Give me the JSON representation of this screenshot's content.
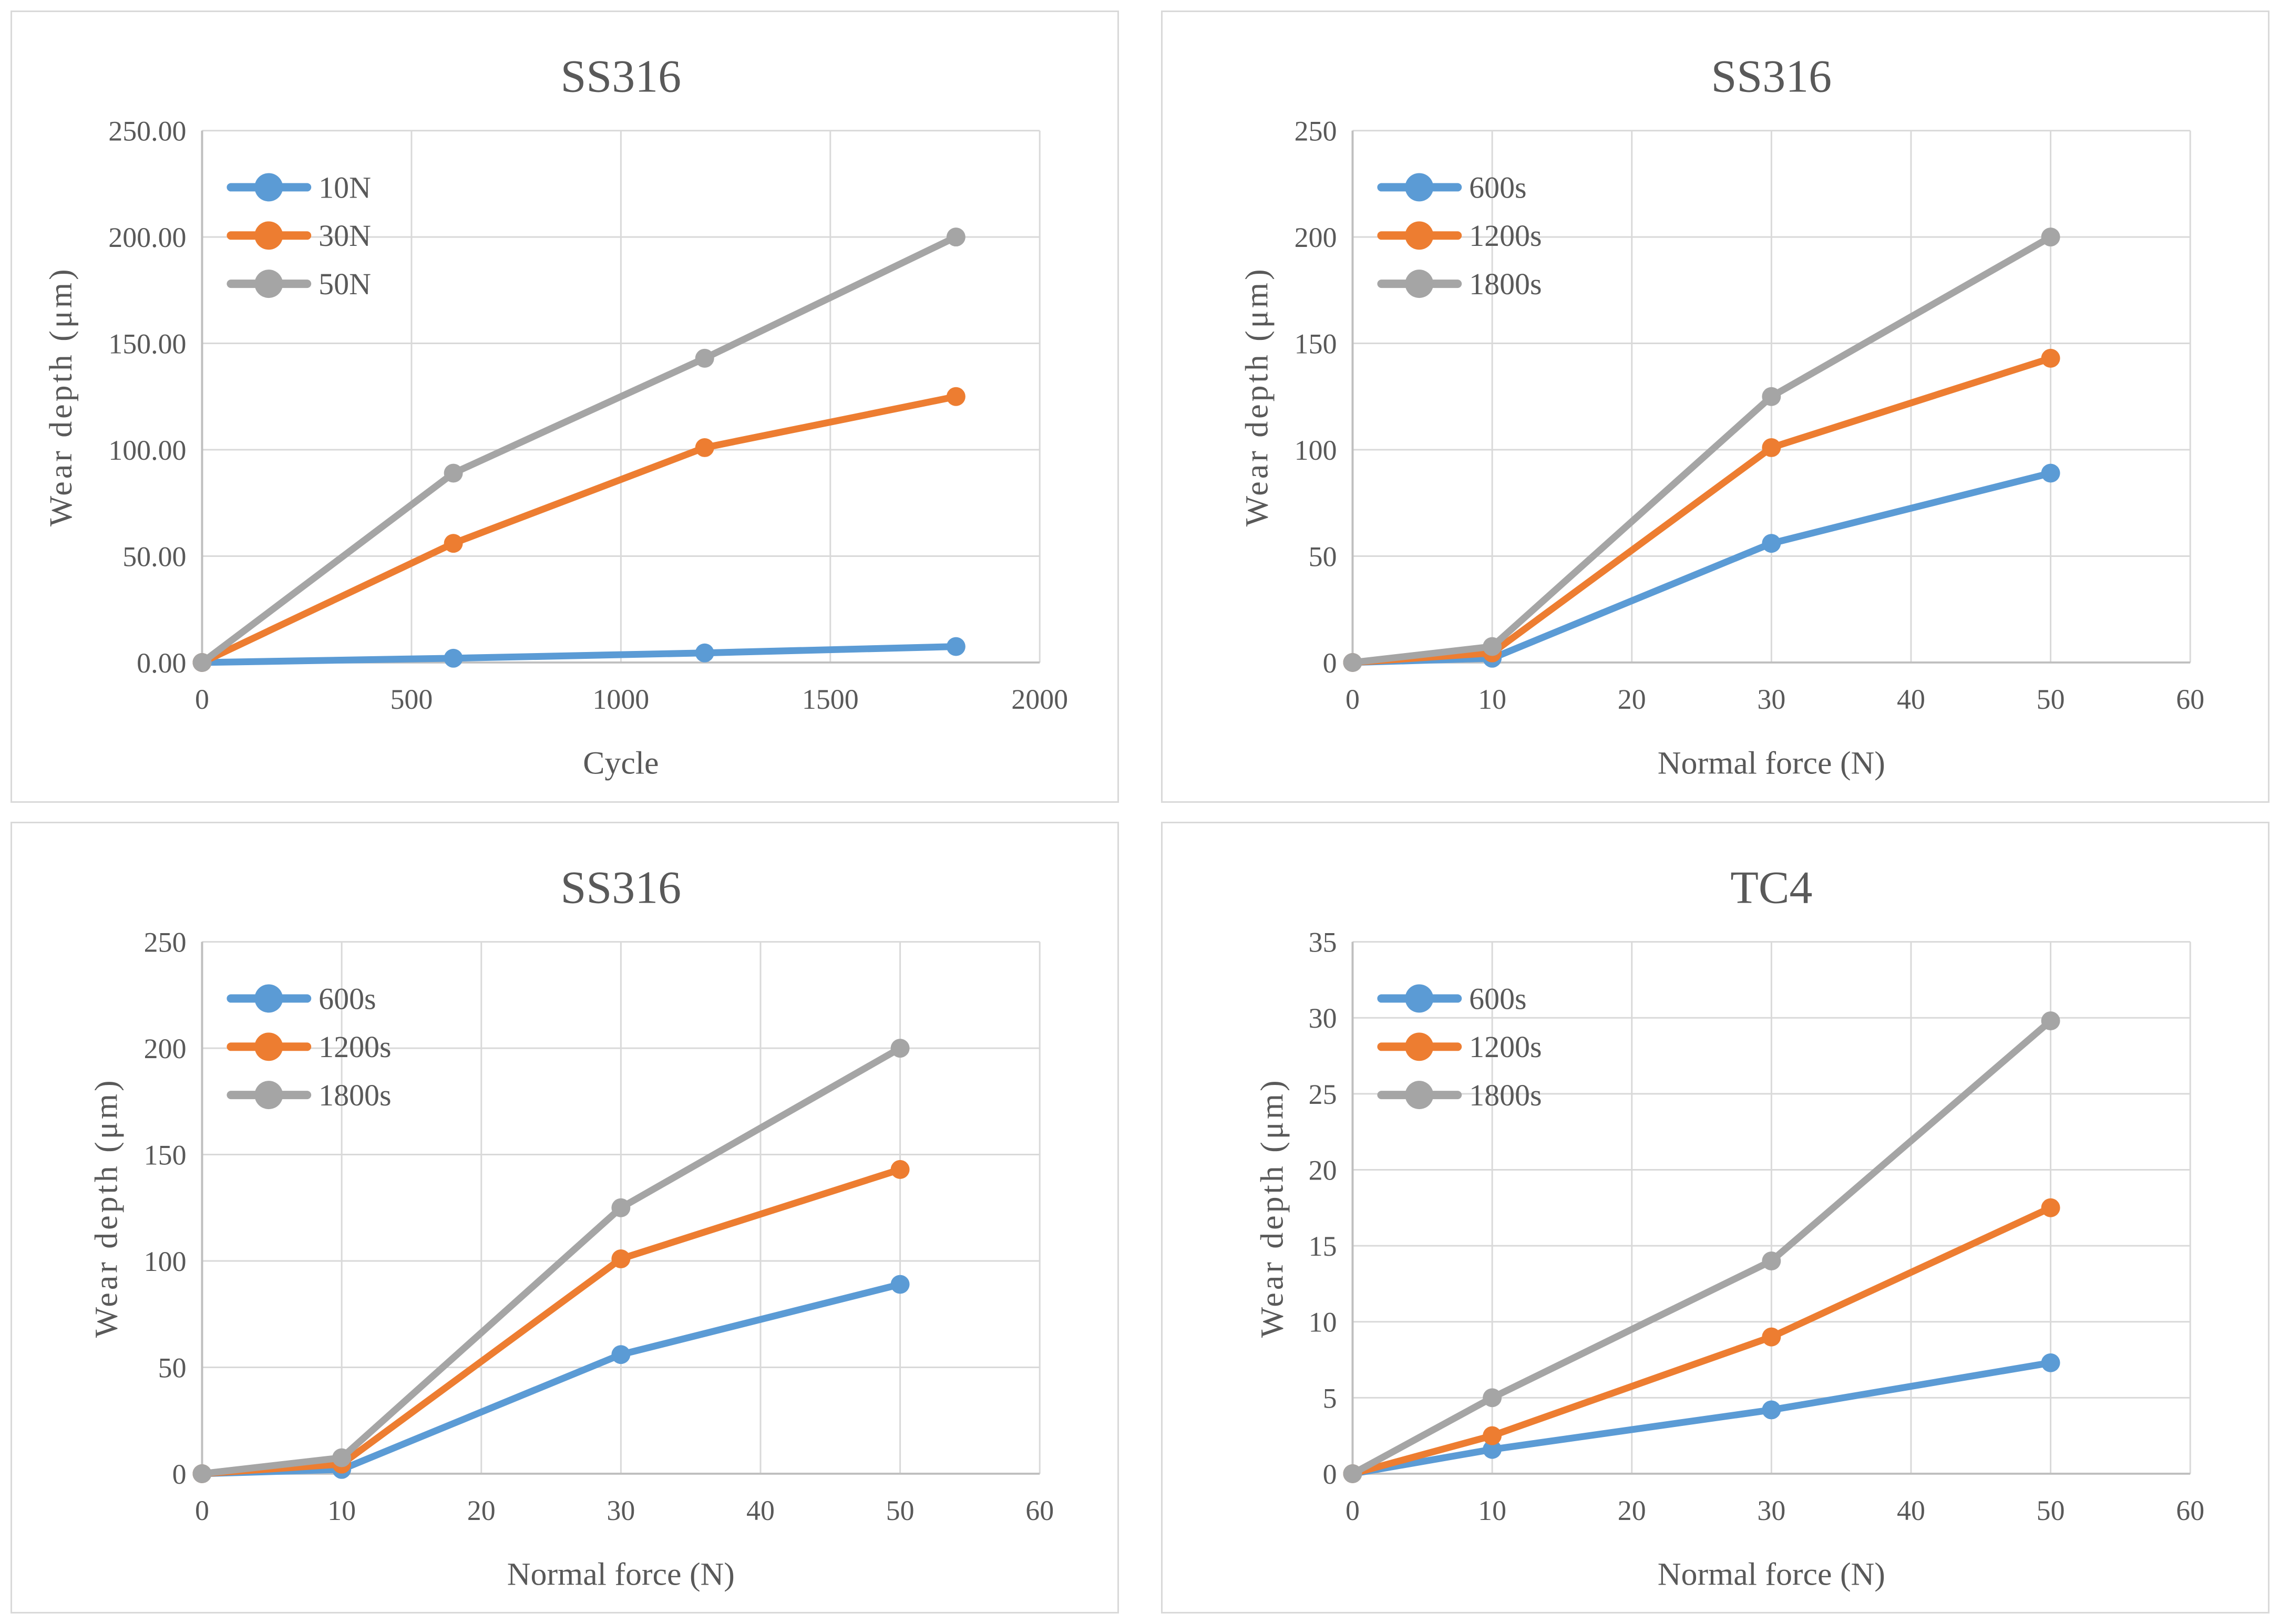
{
  "colors": {
    "series_blue": "#5B9BD5",
    "series_orange": "#ED7D31",
    "series_gray": "#A5A5A5",
    "gridline": "#D9D9D9",
    "axis_line": "#BFBFBF",
    "text": "#595959",
    "panel_border": "#D9D9D9",
    "background": "#FFFFFF"
  },
  "chart_data": [
    {
      "type": "line",
      "title": "SS316",
      "xlabel": "Cycle",
      "ylabel": "Wear depth (μm)",
      "grid": true,
      "legend_position": "top-left-inside",
      "x": [
        0,
        600,
        1200,
        1800
      ],
      "xlim": [
        0,
        2000
      ],
      "xticks": [
        0,
        500,
        1000,
        1500,
        2000
      ],
      "xtick_labels": [
        "0",
        "500",
        "1000",
        "1500",
        "2000"
      ],
      "ylim": [
        0,
        250
      ],
      "yticks": [
        0,
        50,
        100,
        150,
        200,
        250
      ],
      "ytick_labels": [
        "0.00",
        "50.00",
        "100.00",
        "150.00",
        "200.00",
        "250.00"
      ],
      "series": [
        {
          "name": "10N",
          "color": "#5B9BD5",
          "values": [
            0,
            2,
            4.5,
            7.5
          ]
        },
        {
          "name": "30N",
          "color": "#ED7D31",
          "values": [
            0,
            56,
            101,
            125
          ]
        },
        {
          "name": "50N",
          "color": "#A5A5A5",
          "values": [
            0,
            89,
            143,
            200
          ]
        }
      ]
    },
    {
      "type": "line",
      "title": "SS316",
      "xlabel": "Normal force (N)",
      "ylabel": "Wear depth (μm)",
      "grid": true,
      "legend_position": "top-left-inside",
      "x": [
        0,
        10,
        30,
        50
      ],
      "xlim": [
        0,
        60
      ],
      "xticks": [
        0,
        10,
        20,
        30,
        40,
        50,
        60
      ],
      "xtick_labels": [
        "0",
        "10",
        "20",
        "30",
        "40",
        "50",
        "60"
      ],
      "ylim": [
        0,
        250
      ],
      "yticks": [
        0,
        50,
        100,
        150,
        200,
        250
      ],
      "ytick_labels": [
        "0",
        "50",
        "100",
        "150",
        "200",
        "250"
      ],
      "series": [
        {
          "name": "600s",
          "color": "#5B9BD5",
          "values": [
            0,
            2,
            56,
            89
          ]
        },
        {
          "name": "1200s",
          "color": "#ED7D31",
          "values": [
            0,
            4.5,
            101,
            143
          ]
        },
        {
          "name": "1800s",
          "color": "#A5A5A5",
          "values": [
            0,
            7.5,
            125,
            200
          ]
        }
      ]
    },
    {
      "type": "line",
      "title": "SS316",
      "xlabel": "Normal force (N)",
      "ylabel": "Wear depth (μm)",
      "grid": true,
      "legend_position": "top-left-inside",
      "x": [
        0,
        10,
        30,
        50
      ],
      "xlim": [
        0,
        60
      ],
      "xticks": [
        0,
        10,
        20,
        30,
        40,
        50,
        60
      ],
      "xtick_labels": [
        "0",
        "10",
        "20",
        "30",
        "40",
        "50",
        "60"
      ],
      "ylim": [
        0,
        250
      ],
      "yticks": [
        0,
        50,
        100,
        150,
        200,
        250
      ],
      "ytick_labels": [
        "0",
        "50",
        "100",
        "150",
        "200",
        "250"
      ],
      "series": [
        {
          "name": "600s",
          "color": "#5B9BD5",
          "values": [
            0,
            2,
            56,
            89
          ]
        },
        {
          "name": "1200s",
          "color": "#ED7D31",
          "values": [
            0,
            4.5,
            101,
            143
          ]
        },
        {
          "name": "1800s",
          "color": "#A5A5A5",
          "values": [
            0,
            7.5,
            125,
            200
          ]
        }
      ]
    },
    {
      "type": "line",
      "title": "TC4",
      "xlabel": "Normal force (N)",
      "ylabel": "Wear depth (μm)",
      "grid": true,
      "legend_position": "top-left-inside",
      "x": [
        0,
        10,
        30,
        50
      ],
      "xlim": [
        0,
        60
      ],
      "xticks": [
        0,
        10,
        20,
        30,
        40,
        50,
        60
      ],
      "xtick_labels": [
        "0",
        "10",
        "20",
        "30",
        "40",
        "50",
        "60"
      ],
      "ylim": [
        0,
        35
      ],
      "yticks": [
        0,
        5,
        10,
        15,
        20,
        25,
        30,
        35
      ],
      "ytick_labels": [
        "0",
        "5",
        "10",
        "15",
        "20",
        "25",
        "30",
        "35"
      ],
      "series": [
        {
          "name": "600s",
          "color": "#5B9BD5",
          "values": [
            0,
            1.6,
            4.2,
            7.3
          ]
        },
        {
          "name": "1200s",
          "color": "#ED7D31",
          "values": [
            0,
            2.5,
            9,
            17.5
          ]
        },
        {
          "name": "1800s",
          "color": "#A5A5A5",
          "values": [
            0,
            5,
            14,
            29.8
          ]
        }
      ]
    }
  ]
}
